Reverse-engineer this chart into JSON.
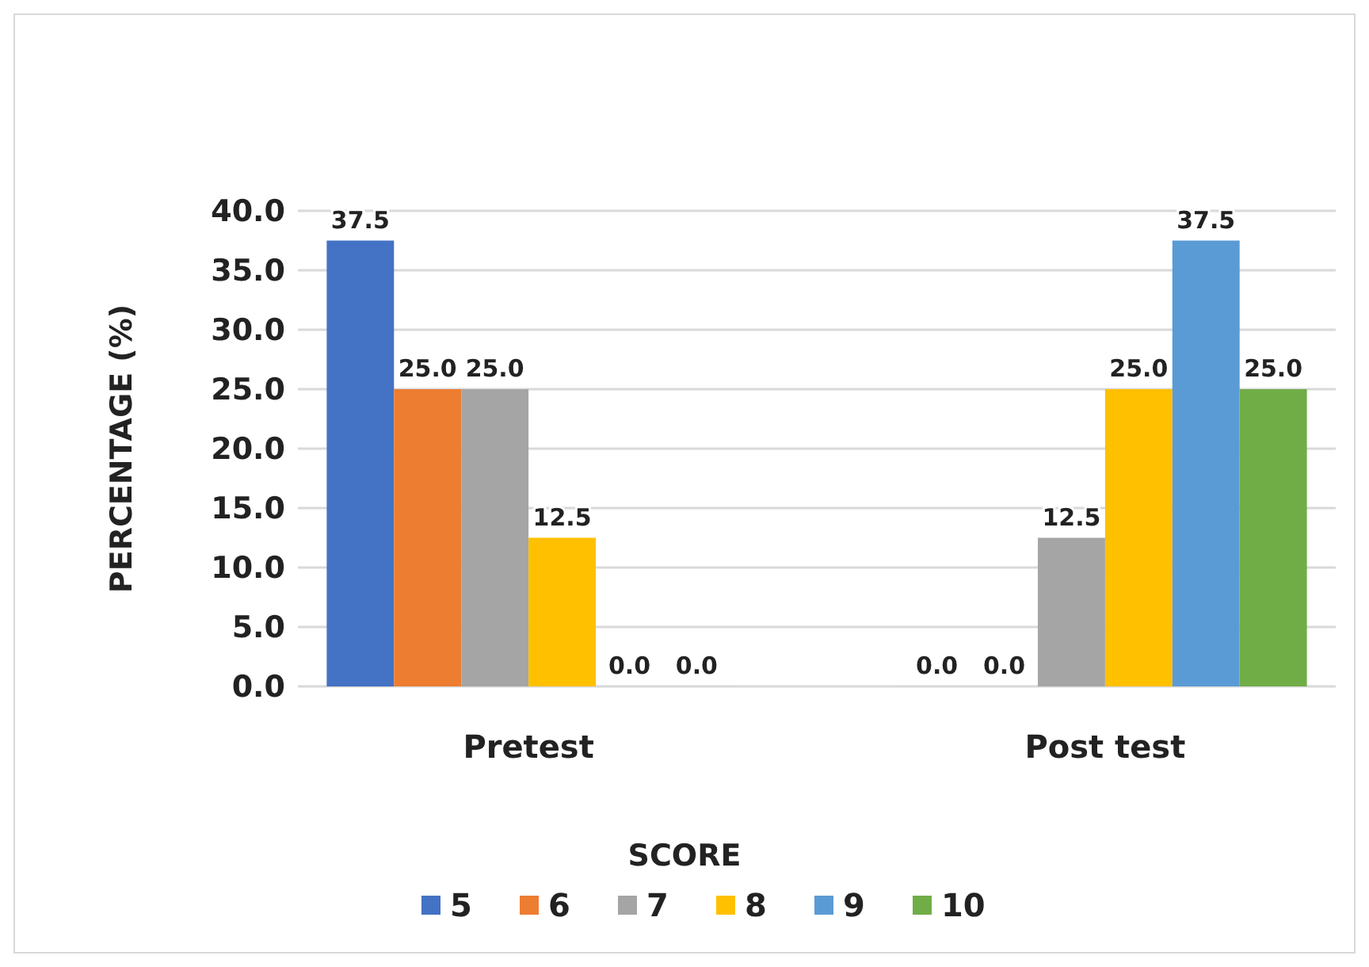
{
  "chart_data": {
    "type": "bar",
    "ylabel": "PERCENTAGE (%)",
    "legend_title": "SCORE",
    "categories": [
      "Pretest",
      "Post test"
    ],
    "series": [
      {
        "name": "5",
        "color": "#4472c4",
        "values": [
          37.5,
          0
        ],
        "value_labels": [
          "37.5",
          "0.0"
        ]
      },
      {
        "name": "6",
        "color": "#ed7d31",
        "values": [
          25,
          0
        ],
        "value_labels": [
          "25.0",
          "0.0"
        ]
      },
      {
        "name": "7",
        "color": "#a5a5a5",
        "values": [
          25,
          12.5
        ],
        "value_labels": [
          "25.0",
          "12.5"
        ]
      },
      {
        "name": "8",
        "color": "#ffc000",
        "values": [
          12.5,
          25
        ],
        "value_labels": [
          "12.5",
          "25.0"
        ]
      },
      {
        "name": "9",
        "color": "#5b9bd5",
        "values": [
          0,
          37.5
        ],
        "value_labels": [
          "0.0",
          "37.5"
        ]
      },
      {
        "name": "10",
        "color": "#70ad47",
        "values": [
          0,
          25
        ],
        "value_labels": [
          "0.0",
          "25.0"
        ]
      }
    ],
    "ylim": [
      0,
      40
    ],
    "yticks": [
      {
        "value": 0,
        "label": "0.0"
      },
      {
        "value": 5,
        "label": "5.0"
      },
      {
        "value": 10,
        "label": "10.0"
      },
      {
        "value": 15,
        "label": "15.0"
      },
      {
        "value": 20,
        "label": "20.0"
      },
      {
        "value": 25,
        "label": "25.0"
      },
      {
        "value": 30,
        "label": "30.0"
      },
      {
        "value": 35,
        "label": "35.0"
      },
      {
        "value": 40,
        "label": "40.0"
      }
    ],
    "grid": "y",
    "legend": "bottom"
  }
}
